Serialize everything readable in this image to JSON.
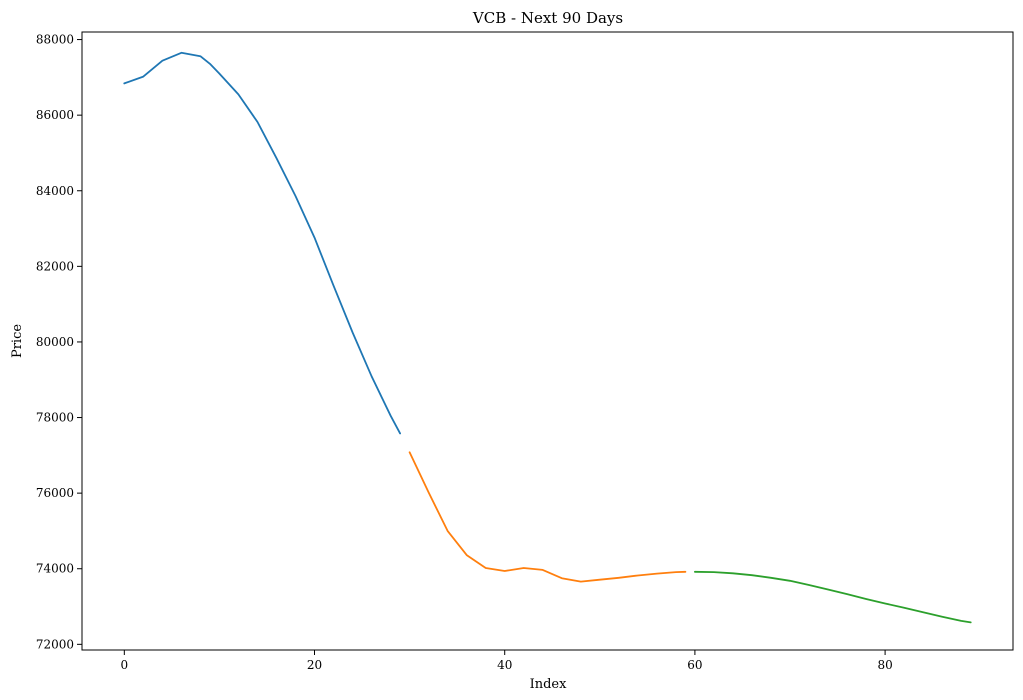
{
  "chart_data": {
    "type": "line",
    "title": "VCB - Next 90 Days",
    "xlabel": "Index",
    "ylabel": "Price",
    "xlim": [
      -4.45,
      93.45
    ],
    "ylim": [
      71850,
      88200
    ],
    "xticks": [
      0,
      20,
      40,
      60,
      80
    ],
    "yticks": [
      72000,
      74000,
      76000,
      78000,
      80000,
      82000,
      84000,
      86000,
      88000
    ],
    "grid": false,
    "legend": "none",
    "series": [
      {
        "color": "#1f77b4",
        "x": [
          0,
          2,
          4,
          6,
          8,
          9,
          10,
          12,
          14,
          16,
          18,
          20,
          22,
          24,
          26,
          28,
          29
        ],
        "y": [
          86840,
          87020,
          87440,
          87650,
          87560,
          87360,
          87100,
          86550,
          85820,
          84860,
          83860,
          82760,
          81490,
          80250,
          79090,
          78050,
          77580
        ]
      },
      {
        "color": "#ff7f0e",
        "x": [
          30,
          32,
          34,
          36,
          38,
          40,
          42,
          44,
          46,
          48,
          50,
          52,
          54,
          56,
          58,
          59
        ],
        "y": [
          77080,
          76020,
          75000,
          74360,
          74020,
          73940,
          74020,
          73970,
          73750,
          73660,
          73710,
          73760,
          73820,
          73870,
          73910,
          73920
        ]
      },
      {
        "color": "#2ca02c",
        "x": [
          60,
          62,
          64,
          66,
          68,
          70,
          72,
          74,
          76,
          78,
          80,
          82,
          84,
          86,
          88,
          89
        ],
        "y": [
          73920,
          73910,
          73880,
          73830,
          73760,
          73680,
          73570,
          73450,
          73330,
          73200,
          73080,
          72970,
          72850,
          72730,
          72620,
          72580
        ]
      }
    ]
  }
}
